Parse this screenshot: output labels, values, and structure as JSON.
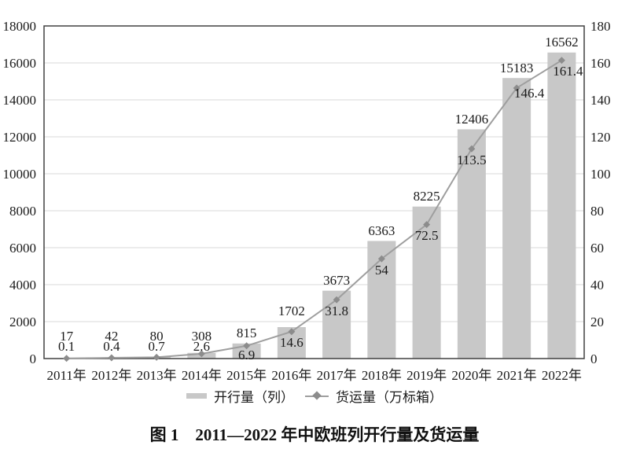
{
  "caption": "图 1　2011—2022 年中欧班列开行量及货运量",
  "legend": {
    "bar_label": "开行量（列）",
    "line_label": "货运量（万标箱）"
  },
  "colors": {
    "bar": "#c8c8c8",
    "line": "#9e9e9e",
    "marker": "#8c8c8c",
    "grid": "#d9d9d9",
    "axis": "#404040",
    "text": "#1a1a1a",
    "background": "#ffffff"
  },
  "chart_data": {
    "type": "bar",
    "subtype": "bar-line-combo",
    "title": "图 1　2011—2022 年中欧班列开行量及货运量",
    "categories": [
      "2011年",
      "2012年",
      "2013年",
      "2014年",
      "2015年",
      "2016年",
      "2017年",
      "2018年",
      "2019年",
      "2020年",
      "2021年",
      "2022年"
    ],
    "series": [
      {
        "name": "开行量（列）",
        "type": "bar",
        "axis": "left",
        "values": [
          17,
          42,
          80,
          308,
          815,
          1702,
          3673,
          6363,
          8225,
          12406,
          15183,
          16562
        ]
      },
      {
        "name": "货运量（万标箱）",
        "type": "line",
        "axis": "right",
        "values": [
          0.1,
          0.4,
          0.7,
          2.6,
          6.9,
          14.6,
          31.8,
          54,
          72.5,
          113.5,
          146.4,
          161.4
        ]
      }
    ],
    "left_axis": {
      "min": 0,
      "max": 18000,
      "step": 2000
    },
    "right_axis": {
      "min": 0,
      "max": 180,
      "step": 20
    },
    "grid": true,
    "data_labels": true,
    "legend_position": "bottom",
    "xlabel": "",
    "ylabel_left": "开行量（列）",
    "ylabel_right": "货运量（万标箱）"
  }
}
